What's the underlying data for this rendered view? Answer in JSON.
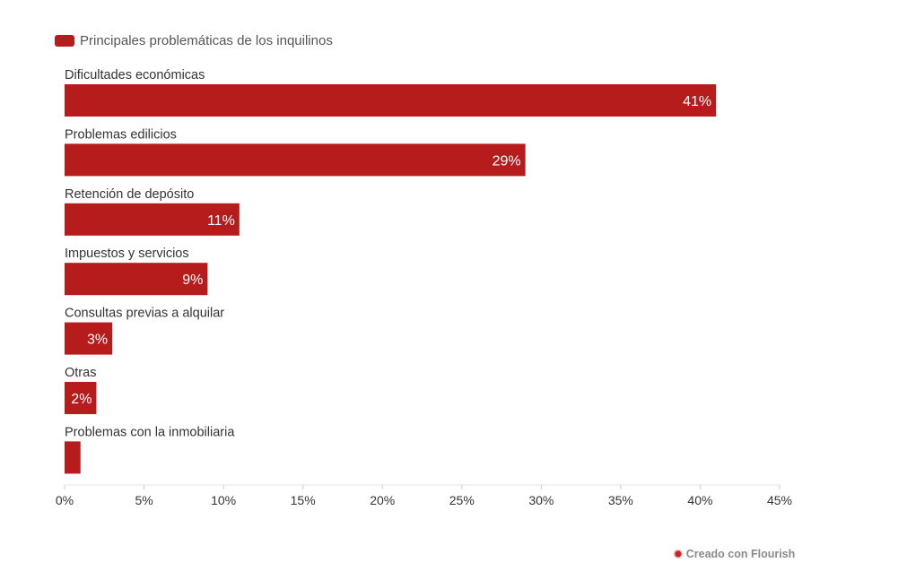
{
  "legend": {
    "label": "Principales problemáticas de los inquilinos",
    "color": "#b71c1c"
  },
  "credit": {
    "icon": "flourish-icon",
    "text": "Creado con Flourish"
  },
  "chart_data": {
    "type": "bar",
    "orientation": "horizontal",
    "title": "",
    "xlabel": "",
    "ylabel": "",
    "categories": [
      "Dificultades económicas",
      "Problemas edilicios",
      "Retención de depósito",
      "Impuestos y servicios",
      "Consultas previas a alquilar",
      "Otras",
      "Problemas con la inmobiliaria"
    ],
    "series": [
      {
        "name": "Principales problemáticas de los inquilinos",
        "values": [
          41,
          29,
          11,
          9,
          3,
          2,
          1
        ],
        "data_labels": [
          "41%",
          "29%",
          "11%",
          "9%",
          "3%",
          "2%",
          ""
        ]
      }
    ],
    "xlim": [
      0,
      45
    ],
    "ticks": [
      0,
      5,
      10,
      15,
      20,
      25,
      30,
      35,
      40,
      45
    ],
    "tick_labels": [
      "0%",
      "5%",
      "10%",
      "15%",
      "20%",
      "25%",
      "30%",
      "35%",
      "40%",
      "45%"
    ],
    "grid": false,
    "legend_position": "top-left",
    "bar_color": "#b71c1c"
  }
}
